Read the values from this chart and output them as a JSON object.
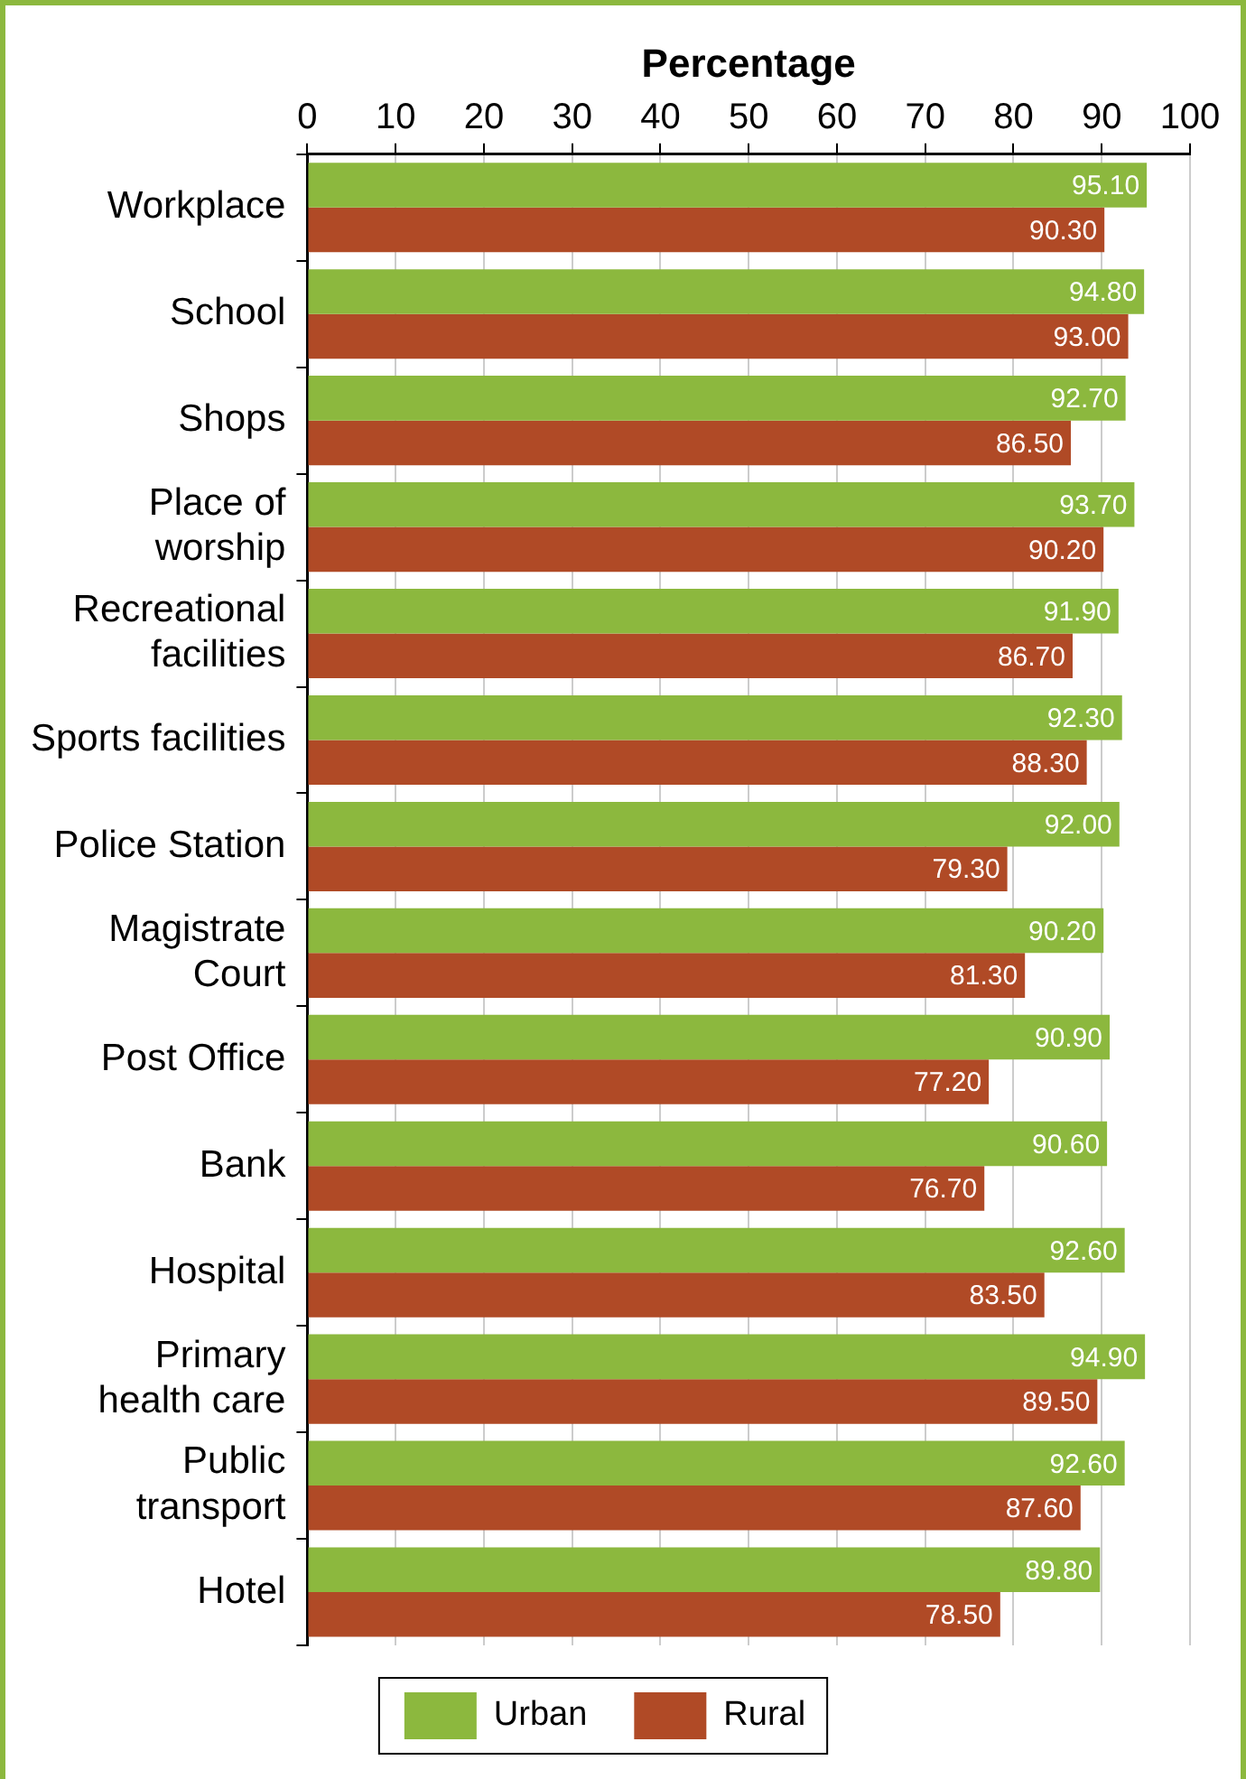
{
  "chart_data": {
    "type": "bar",
    "orientation": "horizontal",
    "xlabel": "Percentage",
    "categories": [
      "Workplace",
      "School",
      "Shops",
      "Place of\nworship",
      "Recreational\nfacilities",
      "Sports facilities",
      "Police Station",
      "Magistrate\nCourt",
      "Post Office",
      "Bank",
      "Hospital",
      "Primary\nhealth care",
      "Public\ntransport",
      "Hotel"
    ],
    "series": [
      {
        "name": "Urban",
        "color": "#8cb83e",
        "values": [
          95.1,
          94.8,
          92.7,
          93.7,
          91.9,
          92.3,
          92.0,
          90.2,
          90.9,
          90.6,
          92.6,
          94.9,
          92.6,
          89.8
        ],
        "value_labels": [
          "95.10",
          "94.80",
          "92.70",
          "93.70",
          "91.90",
          "92.30",
          "92.00",
          "90.20",
          "90.90",
          "90.60",
          "92.60",
          "94.90",
          "92.60",
          "89.80"
        ]
      },
      {
        "name": "Rural",
        "color": "#b04a26",
        "values": [
          90.3,
          93.0,
          86.5,
          90.2,
          86.7,
          88.3,
          79.3,
          81.3,
          77.2,
          76.7,
          83.5,
          89.5,
          87.6,
          78.5
        ],
        "value_labels": [
          "90.30",
          "93.00",
          "86.50",
          "90.20",
          "86.70",
          "88.30",
          "79.30",
          "81.30",
          "77.20",
          "76.70",
          "83.50",
          "89.50",
          "87.60",
          "78.50"
        ]
      }
    ],
    "xlim": [
      0,
      100
    ],
    "xticks": [
      0,
      10,
      20,
      30,
      40,
      50,
      60,
      70,
      80,
      90,
      100
    ],
    "grid": "x",
    "legend": "bottom"
  }
}
